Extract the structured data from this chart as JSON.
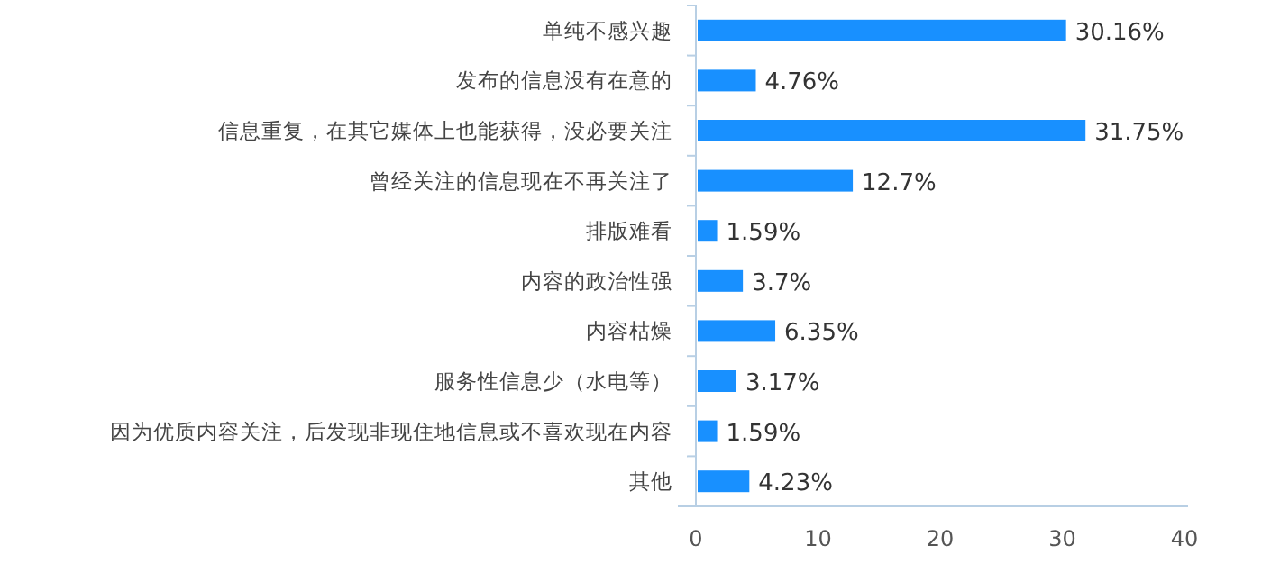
{
  "chart_data": {
    "type": "bar",
    "orientation": "horizontal",
    "categories": [
      "单纯不感兴趣",
      "发布的信息没有在意的",
      "信息重复，在其它媒体上也能获得，没必要关注",
      "曾经关注的信息现在不再关注了",
      "排版难看",
      "内容的政治性强",
      "内容枯燥",
      "服务性信息少（水电等）",
      "因为优质内容关注，后发现非现住地信息或不喜欢现在内容",
      "其他"
    ],
    "values": [
      30.16,
      4.76,
      31.75,
      12.7,
      1.59,
      3.7,
      6.35,
      3.17,
      1.59,
      4.23
    ],
    "value_labels": [
      "30.16%",
      "4.76%",
      "31.75%",
      "12.7%",
      "1.59%",
      "3.7%",
      "6.35%",
      "3.17%",
      "1.59%",
      "4.23%"
    ],
    "color": "#1890ff",
    "xlim": [
      0,
      40
    ],
    "xticks": [
      0,
      10,
      20,
      30,
      40
    ]
  }
}
